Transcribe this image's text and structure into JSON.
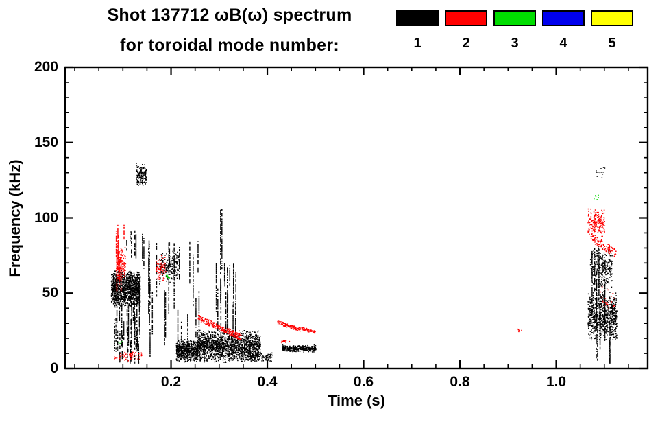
{
  "chart_data": {
    "type": "scatter",
    "title_line1": "Shot 137712 ωB(ω) spectrum",
    "title_line2": "for toroidal mode number:",
    "xlabel": "Time (s)",
    "ylabel": "Frequency (kHz)",
    "xlim": [
      -0.02,
      1.19
    ],
    "ylim": [
      0,
      200
    ],
    "xticks": [
      0.2,
      0.4,
      0.6,
      0.8,
      1.0
    ],
    "yticks": [
      0,
      50,
      100,
      150,
      200
    ],
    "x_minor_step": 0.05,
    "y_minor_step": 10,
    "axis_color": "#000000",
    "background": "#ffffff",
    "legend": [
      {
        "label": "1",
        "color": "#000000"
      },
      {
        "label": "2",
        "color": "#ff0000"
      },
      {
        "label": "3",
        "color": "#00dd00"
      },
      {
        "label": "4",
        "color": "#0000ee"
      },
      {
        "label": "5",
        "color": "#ffff00"
      }
    ],
    "clusters": [
      {
        "mode": 1,
        "kind": "blob",
        "t": [
          0.075,
          0.135
        ],
        "f": [
          40,
          66
        ],
        "n": 1400
      },
      {
        "mode": 1,
        "kind": "vlines",
        "t": [
          0.078,
          0.135
        ],
        "f": [
          4,
          45
        ],
        "k": 30,
        "seglen": [
          10,
          35
        ]
      },
      {
        "mode": 1,
        "kind": "vlines",
        "t": [
          0.1,
          0.145
        ],
        "f": [
          60,
          92
        ],
        "k": 7,
        "seglen": [
          6,
          20
        ]
      },
      {
        "mode": 1,
        "kind": "blob",
        "t": [
          0.127,
          0.148
        ],
        "f": [
          120,
          137
        ],
        "n": 150
      },
      {
        "mode": 1,
        "kind": "vlines",
        "t": [
          0.14,
          0.26
        ],
        "f": [
          8,
          85
        ],
        "k": 22,
        "seglen": [
          15,
          60
        ]
      },
      {
        "mode": 1,
        "kind": "blob",
        "t": [
          0.175,
          0.215
        ],
        "f": [
          55,
          80
        ],
        "n": 190
      },
      {
        "mode": 1,
        "kind": "blob",
        "t": [
          0.21,
          0.255
        ],
        "f": [
          4,
          20
        ],
        "n": 620
      },
      {
        "mode": 1,
        "kind": "blob",
        "t": [
          0.255,
          0.385
        ],
        "f": [
          4,
          26
        ],
        "n": 1650
      },
      {
        "mode": 1,
        "kind": "vlines",
        "t": [
          0.27,
          0.335
        ],
        "f": [
          25,
          70
        ],
        "k": 14,
        "seglen": [
          10,
          40
        ]
      },
      {
        "mode": 1,
        "kind": "vlines",
        "t": [
          0.299,
          0.312
        ],
        "f": [
          20,
          106
        ],
        "k": 3,
        "seglen": [
          60,
          86
        ]
      },
      {
        "mode": 1,
        "kind": "blob",
        "t": [
          0.355,
          0.41
        ],
        "f": [
          4,
          11
        ],
        "n": 110
      },
      {
        "mode": 1,
        "kind": "blob",
        "t": [
          0.43,
          0.5
        ],
        "f": [
          11,
          16
        ],
        "n": 330
      },
      {
        "mode": 1,
        "kind": "blob",
        "t": [
          1.065,
          1.125
        ],
        "f": [
          18,
          52
        ],
        "n": 750
      },
      {
        "mode": 1,
        "kind": "blob",
        "t": [
          1.07,
          1.115
        ],
        "f": [
          52,
          82
        ],
        "n": 300
      },
      {
        "mode": 1,
        "kind": "vlines",
        "t": [
          1.068,
          1.112
        ],
        "f": [
          4,
          80
        ],
        "k": 12,
        "seglen": [
          15,
          50
        ]
      },
      {
        "mode": 1,
        "kind": "blob",
        "t": [
          1.08,
          1.1
        ],
        "f": [
          124,
          136
        ],
        "n": 12
      },
      {
        "mode": 2,
        "kind": "vlines",
        "t": [
          0.085,
          0.102
        ],
        "f": [
          52,
          96
        ],
        "k": 10,
        "seglen": [
          10,
          35
        ]
      },
      {
        "mode": 2,
        "kind": "blob",
        "t": [
          0.085,
          0.105
        ],
        "f": [
          58,
          82
        ],
        "n": 130
      },
      {
        "mode": 2,
        "kind": "blob",
        "t": [
          0.08,
          0.14
        ],
        "f": [
          5,
          12
        ],
        "n": 60
      },
      {
        "mode": 2,
        "kind": "blob",
        "t": [
          0.168,
          0.188
        ],
        "f": [
          58,
          76
        ],
        "n": 70
      },
      {
        "mode": 2,
        "kind": "band",
        "t": [
          0.255,
          0.345
        ],
        "f_start": 34,
        "f_end": 21,
        "n": 230,
        "jitter": 2
      },
      {
        "mode": 2,
        "kind": "band",
        "t": [
          0.42,
          0.468
        ],
        "f_start": 31,
        "f_end": 26,
        "n": 95,
        "jitter": 1.2
      },
      {
        "mode": 2,
        "kind": "band",
        "t": [
          0.47,
          0.5
        ],
        "f_start": 27,
        "f_end": 24,
        "n": 55,
        "jitter": 1
      },
      {
        "mode": 2,
        "kind": "blob",
        "t": [
          0.428,
          0.447
        ],
        "f": [
          17,
          20
        ],
        "n": 20
      },
      {
        "mode": 2,
        "kind": "blob",
        "t": [
          0.915,
          0.928
        ],
        "f": [
          24,
          27
        ],
        "n": 6
      },
      {
        "mode": 2,
        "kind": "blob",
        "t": [
          1.065,
          1.1
        ],
        "f": [
          86,
          108
        ],
        "n": 170
      },
      {
        "mode": 2,
        "kind": "band",
        "t": [
          1.07,
          1.125
        ],
        "f_start": 88,
        "f_end": 76,
        "n": 95,
        "jitter": 3
      },
      {
        "mode": 2,
        "kind": "blob",
        "t": [
          1.09,
          1.12
        ],
        "f": [
          30,
          55
        ],
        "n": 25
      },
      {
        "mode": 3,
        "kind": "blob",
        "t": [
          0.09,
          0.1
        ],
        "f": [
          16,
          19
        ],
        "n": 5
      },
      {
        "mode": 3,
        "kind": "blob",
        "t": [
          0.185,
          0.196
        ],
        "f": [
          58,
          64
        ],
        "n": 6
      },
      {
        "mode": 3,
        "kind": "blob",
        "t": [
          1.075,
          1.088
        ],
        "f": [
          110,
          117
        ],
        "n": 6
      }
    ]
  }
}
